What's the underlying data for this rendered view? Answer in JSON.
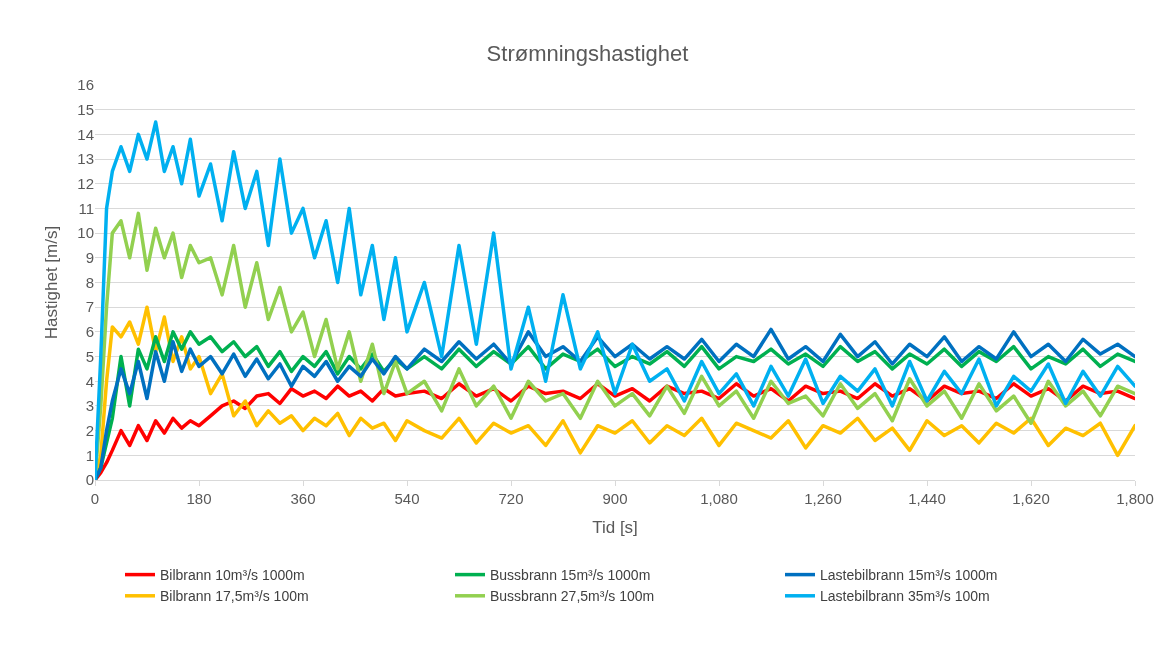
{
  "chart_data": {
    "type": "line",
    "title": "Strømningshastighet",
    "xlabel": "Tid [s]",
    "ylabel": "Hastighet [m/s]",
    "x": [
      0,
      10,
      20,
      30,
      45,
      60,
      75,
      90,
      105,
      120,
      135,
      150,
      165,
      180,
      200,
      220,
      240,
      260,
      280,
      300,
      320,
      340,
      360,
      380,
      400,
      420,
      440,
      460,
      480,
      500,
      520,
      540,
      570,
      600,
      630,
      660,
      690,
      720,
      750,
      780,
      810,
      840,
      870,
      900,
      930,
      960,
      990,
      1020,
      1050,
      1080,
      1110,
      1140,
      1170,
      1200,
      1230,
      1260,
      1290,
      1320,
      1350,
      1380,
      1410,
      1440,
      1470,
      1500,
      1530,
      1560,
      1590,
      1620,
      1650,
      1680,
      1710,
      1740,
      1770,
      1800
    ],
    "xlim": [
      0,
      1800
    ],
    "xticks": [
      0,
      180,
      360,
      540,
      720,
      900,
      {
        "value": 1080,
        "label": "1,080"
      },
      {
        "value": 1260,
        "label": "1,260"
      },
      {
        "value": 1440,
        "label": "1,440"
      },
      {
        "value": 1620,
        "label": "1,620"
      },
      {
        "value": 1800,
        "label": "1,800"
      }
    ],
    "ylim": [
      0,
      16
    ],
    "yticks": [
      0,
      1,
      2,
      3,
      4,
      5,
      6,
      7,
      8,
      9,
      10,
      11,
      12,
      13,
      14,
      15,
      16
    ],
    "grid": "y",
    "legend": "bottom",
    "marker": "none",
    "line_style": "solid",
    "series": [
      {
        "name": "Bilbrann 10m³/s 1000m",
        "color": "#ff0000",
        "values": [
          0,
          0.3,
          0.7,
          1.2,
          2,
          1.4,
          2.2,
          1.6,
          2.4,
          1.9,
          2.5,
          2.1,
          2.4,
          2.2,
          2.6,
          3,
          3.2,
          2.9,
          3.4,
          3.5,
          3.1,
          3.7,
          3.4,
          3.6,
          3.3,
          3.8,
          3.4,
          3.6,
          3.2,
          3.7,
          3.4,
          3.5,
          3.6,
          3.3,
          3.9,
          3.4,
          3.7,
          3.2,
          3.8,
          3.5,
          3.6,
          3.3,
          3.9,
          3.4,
          3.7,
          3.2,
          3.8,
          3.5,
          3.6,
          3.3,
          3.9,
          3.4,
          3.7,
          3.2,
          3.8,
          3.5,
          3.6,
          3.3,
          3.9,
          3.4,
          3.7,
          3.2,
          3.8,
          3.5,
          3.6,
          3.3,
          3.9,
          3.4,
          3.7,
          3.2,
          3.8,
          3.5,
          3.6,
          3.3
        ]
      },
      {
        "name": "Bilbrann 17,5m³/s 100m",
        "color": "#ffc000",
        "values": [
          0,
          1,
          4,
          6.2,
          5.8,
          6.4,
          5.5,
          7,
          5.2,
          6.6,
          4.8,
          5.8,
          4.5,
          5,
          3.5,
          4.3,
          2.6,
          3.2,
          2.2,
          2.8,
          2.3,
          2.6,
          2,
          2.5,
          2.2,
          2.7,
          1.8,
          2.5,
          2.1,
          2.3,
          1.6,
          2.4,
          2,
          1.7,
          2.5,
          1.5,
          2.3,
          1.9,
          2.2,
          1.4,
          2.4,
          1.1,
          2.2,
          1.9,
          2.4,
          1.5,
          2.2,
          1.8,
          2.5,
          1.4,
          2.3,
          2,
          1.7,
          2.4,
          1.3,
          2.2,
          1.9,
          2.5,
          1.6,
          2.1,
          1.2,
          2.4,
          1.8,
          2.2,
          1.5,
          2.3,
          1.9,
          2.5,
          1.4,
          2.1,
          1.8,
          2.3,
          1,
          2.2
        ]
      },
      {
        "name": "Bussbrann 15m³/s 1000m",
        "color": "#00b050",
        "values": [
          0,
          0.5,
          1.5,
          2.5,
          5,
          3,
          5.3,
          4.5,
          5.8,
          4.8,
          6,
          5.3,
          6,
          5.5,
          5.8,
          5.2,
          5.6,
          5,
          5.4,
          4.6,
          5.2,
          4.4,
          5,
          4.6,
          5.2,
          4.3,
          5,
          4.5,
          5.1,
          4.4,
          4.9,
          4.5,
          5,
          4.5,
          5.3,
          4.6,
          5.2,
          4.7,
          5.4,
          4.5,
          5.1,
          4.8,
          5.3,
          4.6,
          5,
          4.7,
          5.2,
          4.6,
          5.4,
          4.5,
          5,
          4.8,
          5.3,
          4.7,
          5.1,
          4.6,
          5.4,
          4.8,
          5.2,
          4.5,
          5.1,
          4.7,
          5.3,
          4.6,
          5.2,
          4.8,
          5.4,
          4.5,
          5,
          4.7,
          5.3,
          4.6,
          5.1,
          4.8
        ]
      },
      {
        "name": "Bussbrann 27,5m³/s 100m",
        "color": "#92d050",
        "values": [
          0,
          3,
          7,
          10,
          10.5,
          9,
          10.8,
          8.5,
          10.2,
          9,
          10,
          8.2,
          9.5,
          8.8,
          9,
          7.5,
          9.5,
          7,
          8.8,
          6.5,
          7.8,
          6,
          6.8,
          5,
          6.5,
          4.5,
          6,
          4,
          5.5,
          3.5,
          4.8,
          3.5,
          4,
          2.8,
          4.5,
          3,
          3.8,
          2.5,
          4,
          3.2,
          3.5,
          2.5,
          4,
          3,
          3.5,
          2.6,
          3.8,
          2.7,
          4.2,
          3,
          3.6,
          2.5,
          4,
          3.1,
          3.4,
          2.6,
          3.9,
          2.9,
          3.5,
          2.4,
          4.1,
          3,
          3.6,
          2.5,
          3.9,
          2.8,
          3.4,
          2.3,
          4,
          3,
          3.6,
          2.6,
          3.8,
          3.5
        ]
      },
      {
        "name": "Lastebilbrann 15m³/s 1000m",
        "color": "#0070c0",
        "values": [
          0,
          0.5,
          2,
          3.2,
          4.5,
          3.5,
          4.8,
          3.3,
          5.2,
          4,
          5.6,
          4.4,
          5.3,
          4.6,
          5,
          4.3,
          5.1,
          4.2,
          4.9,
          4.1,
          4.7,
          3.8,
          4.6,
          4.2,
          4.8,
          4,
          4.6,
          4.2,
          4.9,
          4.3,
          5,
          4.5,
          5.3,
          4.8,
          5.6,
          4.9,
          5.5,
          4.7,
          6,
          5,
          5.4,
          4.8,
          5.8,
          5,
          5.5,
          4.9,
          5.4,
          4.9,
          5.7,
          4.8,
          5.5,
          5,
          6.1,
          4.9,
          5.4,
          4.8,
          5.9,
          5,
          5.6,
          4.7,
          5.5,
          5,
          5.8,
          4.8,
          5.4,
          4.9,
          6,
          5,
          5.5,
          4.8,
          5.7,
          5.1,
          5.5,
          5
        ]
      },
      {
        "name": "Lastebilbrann 35m³/s 100m",
        "color": "#00b0f0",
        "values": [
          0,
          5,
          11,
          12.5,
          13.5,
          12.5,
          14,
          13,
          14.5,
          12.5,
          13.5,
          12,
          13.8,
          11.5,
          12.8,
          10.5,
          13.3,
          11,
          12.5,
          9.5,
          13,
          10,
          11,
          9,
          10.5,
          8,
          11,
          7.5,
          9.5,
          6.5,
          9,
          6,
          8,
          5,
          9.5,
          5.5,
          10,
          4.5,
          7,
          4,
          7.5,
          4.5,
          6,
          3.5,
          5.5,
          4,
          4.5,
          3.2,
          4.8,
          3.5,
          4.3,
          3,
          4.6,
          3.4,
          4.9,
          3.1,
          4.2,
          3.6,
          4.5,
          3,
          4.8,
          3.2,
          4.4,
          3.5,
          4.9,
          3,
          4.2,
          3.6,
          4.7,
          3.1,
          4.4,
          3.4,
          4.6,
          3.8
        ]
      }
    ]
  }
}
